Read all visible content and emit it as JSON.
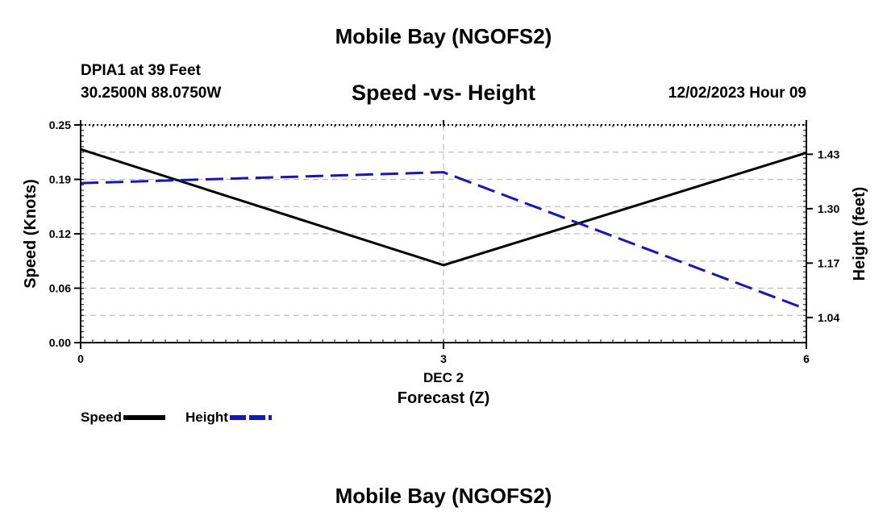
{
  "header": {
    "title": "Mobile Bay (NGOFS2)",
    "station": "DPIA1 at 39 Feet",
    "coords": "30.2500N  88.0750W",
    "subtitle": "Speed -vs- Height",
    "datetime": "12/02/2023 Hour 09"
  },
  "footer": {
    "title": "Mobile Bay (NGOFS2)"
  },
  "chart_data": {
    "type": "line",
    "title": "Speed -vs- Height",
    "x": [
      0,
      3,
      6
    ],
    "x_ticks": [
      "0",
      "3",
      "6"
    ],
    "x_day_label": "DEC 2",
    "xlabel": "Forecast (Z)",
    "xlim": [
      0,
      6
    ],
    "y_left": {
      "label": "Speed (Knots)",
      "ticks": [
        "0.00",
        "0.06",
        "0.12",
        "0.19",
        "0.25"
      ],
      "tick_values": [
        0.0,
        0.0625,
        0.125,
        0.1875,
        0.25
      ],
      "lim": [
        0,
        0.25
      ]
    },
    "y_right": {
      "label": "Height (feet)",
      "ticks": [
        "1.04",
        "1.17",
        "1.30",
        "1.43"
      ],
      "tick_values": [
        1.04,
        1.17,
        1.3,
        1.43
      ],
      "lim": [
        0.98,
        1.5
      ]
    },
    "grid": true,
    "series": [
      {
        "name": "Speed",
        "axis": "left",
        "values": [
          0.222,
          0.089,
          0.218
        ],
        "color": "#000000",
        "dash": "solid"
      },
      {
        "name": "Height",
        "axis": "right",
        "values": [
          1.361,
          1.387,
          1.06
        ],
        "color": "#1414c8",
        "dash": "dashed"
      }
    ],
    "legend_position": "bottom-left"
  }
}
